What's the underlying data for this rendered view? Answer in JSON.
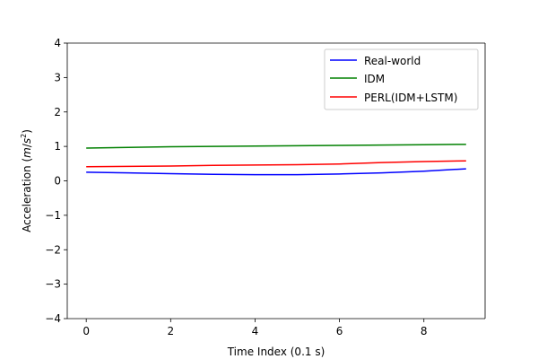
{
  "chart_data": {
    "type": "line",
    "title": "",
    "xlabel": "Time Index (0.1 s)",
    "ylabel_prefix": "Acceleration (",
    "ylabel_unit_m": "m",
    "ylabel_unit_slash": "/",
    "ylabel_unit_s": "s",
    "ylabel_unit_exp": "2",
    "ylabel_suffix": ")",
    "xlim": [
      -0.45,
      9.45
    ],
    "ylim": [
      -4,
      4
    ],
    "xticks": [
      0,
      2,
      4,
      6,
      8
    ],
    "yticks": [
      -4,
      -3,
      -2,
      -1,
      0,
      1,
      2,
      3,
      4
    ],
    "grid": false,
    "legend_position": "top-right",
    "x": [
      0,
      1,
      2,
      3,
      4,
      5,
      6,
      7,
      8,
      9
    ],
    "series": [
      {
        "name": "Real-world",
        "color": "#0000ff",
        "values": [
          0.25,
          0.23,
          0.21,
          0.19,
          0.18,
          0.18,
          0.2,
          0.23,
          0.28,
          0.35
        ]
      },
      {
        "name": "IDM",
        "color": "#008000",
        "values": [
          0.95,
          0.97,
          0.99,
          1.0,
          1.01,
          1.02,
          1.03,
          1.04,
          1.05,
          1.06
        ]
      },
      {
        "name": "PERL(IDM+LSTM)",
        "color": "#ff0000",
        "values": [
          0.41,
          0.42,
          0.43,
          0.45,
          0.46,
          0.47,
          0.49,
          0.53,
          0.56,
          0.58
        ]
      }
    ]
  }
}
